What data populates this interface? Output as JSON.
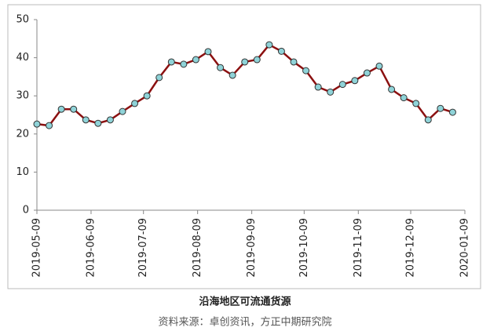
{
  "chart_data": {
    "type": "line",
    "title": "沿海地区可流通货源",
    "source": "资料来源：卓创资讯，方正中期研究院",
    "x": [
      "2019-05-09",
      "2019-05-16",
      "2019-05-23",
      "2019-05-30",
      "2019-06-06",
      "2019-06-13",
      "2019-06-20",
      "2019-06-27",
      "2019-07-04",
      "2019-07-11",
      "2019-07-18",
      "2019-07-25",
      "2019-08-01",
      "2019-08-08",
      "2019-08-15",
      "2019-08-22",
      "2019-08-29",
      "2019-09-05",
      "2019-09-12",
      "2019-09-19",
      "2019-09-26",
      "2019-10-03",
      "2019-10-10",
      "2019-10-17",
      "2019-10-24",
      "2019-10-31",
      "2019-11-07",
      "2019-11-14",
      "2019-11-21",
      "2019-11-28",
      "2019-12-05",
      "2019-12-12",
      "2019-12-19",
      "2019-12-26",
      "2020-01-02"
    ],
    "series": [
      {
        "name": "沿海地区可流通货源",
        "color": "#8b1010",
        "marker_color": "#8fd3d8",
        "values": [
          22.6,
          22.2,
          26.5,
          26.5,
          23.7,
          22.8,
          23.7,
          25.9,
          28.0,
          30.0,
          34.8,
          38.9,
          38.3,
          39.5,
          41.6,
          37.4,
          35.4,
          38.9,
          39.5,
          43.4,
          41.7,
          38.9,
          36.6,
          32.3,
          31.0,
          33.0,
          34.0,
          36.0,
          37.8,
          31.7,
          29.5,
          28.0,
          23.7,
          26.7,
          25.7
        ]
      }
    ],
    "xlim": [
      "2019-05-09",
      "2020-01-09"
    ],
    "xticks": [
      "2019-05-09",
      "2019-06-09",
      "2019-07-09",
      "2019-08-09",
      "2019-09-09",
      "2019-10-09",
      "2019-11-09",
      "2019-12-09",
      "2020-01-09"
    ],
    "ylim": [
      0,
      50
    ],
    "yticks": [
      0,
      10,
      20,
      30,
      40,
      50
    ],
    "grid": false
  }
}
